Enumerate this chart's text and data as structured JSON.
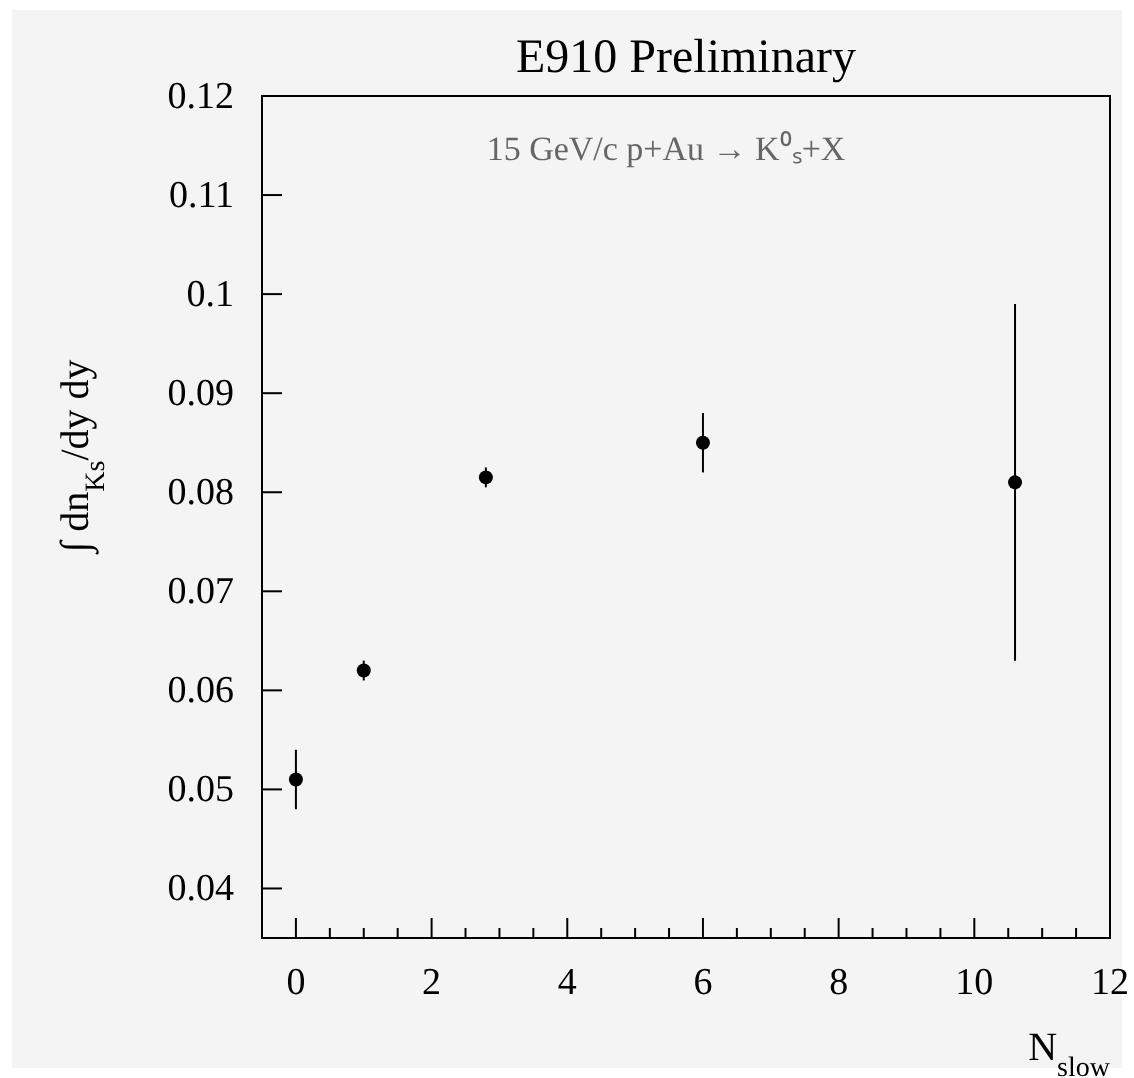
{
  "chart_data": {
    "type": "scatter",
    "title": "E910 Preliminary",
    "xlabel": "N$_{slow}$",
    "ylabel": "∫ dn$_{Ks}$/dy dy",
    "annotations": [
      "15 GeV/c p+Au → K⁰ₛ+X"
    ],
    "x": [
      0,
      1,
      2.8,
      6,
      10.6
    ],
    "series": [
      {
        "color": "#000000",
        "values": [
          0.051,
          0.062,
          0.0815,
          0.085,
          0.081
        ],
        "errors": [
          0.003,
          0.001,
          0.001,
          0.003,
          0.018
        ]
      }
    ],
    "xlim": [
      -0.5,
      12
    ],
    "xticks": [
      0,
      2,
      4,
      6,
      8,
      10,
      12
    ],
    "ylim": [
      0.035,
      0.12
    ],
    "yticks": [
      0.04,
      0.05,
      0.06,
      0.07,
      0.08,
      0.09,
      0.1,
      0.11,
      0.12
    ],
    "marker": "circle",
    "grid": false
  }
}
